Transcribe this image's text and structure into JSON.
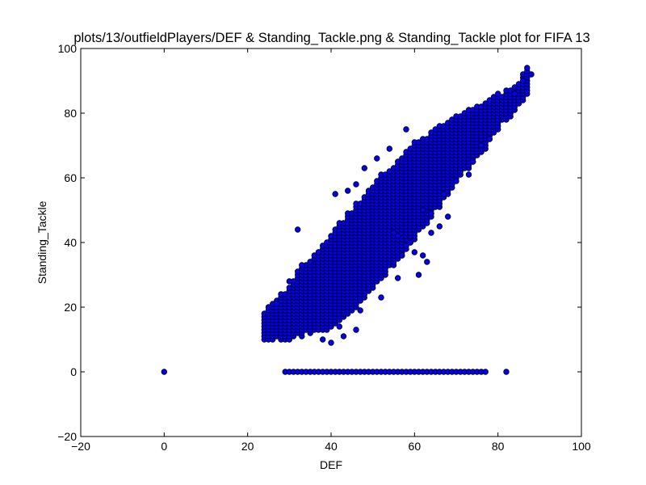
{
  "chart_data": {
    "type": "scatter",
    "title": "plots/13/outfieldPlayers/DEF & Standing_Tackle.png & Standing_Tackle plot for FIFA 13",
    "xlabel": "DEF",
    "ylabel": "Standing_Tackle",
    "xlim": [
      -20,
      100
    ],
    "ylim": [
      -20,
      100
    ],
    "xticks": [
      "−20",
      "0",
      "20",
      "40",
      "60",
      "80",
      "100"
    ],
    "yticks": [
      "−20",
      "0",
      "20",
      "40",
      "60",
      "80",
      "100"
    ],
    "grid": false,
    "legend": "none",
    "marker_color": "#0000ff",
    "marker_edge_color": "#000000",
    "zero_points_x": [
      0,
      29,
      30,
      31,
      32,
      33,
      34,
      35,
      36,
      37,
      38,
      39,
      40,
      41,
      42,
      43,
      44,
      45,
      46,
      47,
      48,
      49,
      50,
      51,
      52,
      53,
      54,
      55,
      56,
      57,
      58,
      59,
      60,
      61,
      62,
      63,
      64,
      65,
      66,
      67,
      68,
      69,
      70,
      71,
      72,
      73,
      74,
      75,
      76,
      77,
      82
    ],
    "band_lower": [
      [
        24,
        10
      ],
      [
        30,
        10
      ],
      [
        40,
        13
      ],
      [
        46,
        20
      ],
      [
        50,
        26
      ],
      [
        56,
        34
      ],
      [
        60,
        41
      ],
      [
        66,
        51
      ],
      [
        70,
        59
      ],
      [
        76,
        67
      ],
      [
        80,
        75
      ],
      [
        86,
        83
      ],
      [
        88,
        88
      ]
    ],
    "band_upper": [
      [
        24,
        19
      ],
      [
        28,
        24
      ],
      [
        32,
        31
      ],
      [
        36,
        36
      ],
      [
        40,
        43
      ],
      [
        44,
        49
      ],
      [
        48,
        55
      ],
      [
        52,
        61
      ],
      [
        56,
        66
      ],
      [
        60,
        71
      ],
      [
        66,
        76
      ],
      [
        70,
        79
      ],
      [
        76,
        83
      ],
      [
        80,
        86
      ],
      [
        84,
        88
      ],
      [
        87,
        94
      ]
    ],
    "outliers": [
      [
        32,
        44
      ],
      [
        41,
        55
      ],
      [
        44,
        56
      ],
      [
        46,
        58
      ],
      [
        48,
        63
      ],
      [
        51,
        66
      ],
      [
        54,
        69
      ],
      [
        58,
        75
      ],
      [
        64,
        49
      ],
      [
        56,
        42
      ],
      [
        60,
        37
      ],
      [
        62,
        36
      ],
      [
        63,
        34
      ],
      [
        55,
        43
      ],
      [
        58,
        39
      ],
      [
        46,
        13
      ],
      [
        43,
        11
      ],
      [
        40,
        9
      ],
      [
        38,
        10
      ],
      [
        42,
        14
      ],
      [
        47,
        19
      ],
      [
        52,
        23
      ],
      [
        56,
        29
      ],
      [
        61,
        30
      ],
      [
        67,
        55
      ],
      [
        70,
        59
      ],
      [
        73,
        61
      ],
      [
        76,
        70
      ],
      [
        88,
        92
      ],
      [
        62,
        50
      ],
      [
        66,
        45
      ],
      [
        57,
        36
      ],
      [
        68,
        48
      ],
      [
        59,
        40
      ],
      [
        64,
        43
      ],
      [
        74,
        65
      ],
      [
        78,
        72
      ],
      [
        84,
        86
      ],
      [
        86,
        90
      ],
      [
        37,
        37
      ],
      [
        35,
        34
      ],
      [
        33,
        33
      ],
      [
        30,
        28
      ],
      [
        27,
        21
      ]
    ]
  }
}
